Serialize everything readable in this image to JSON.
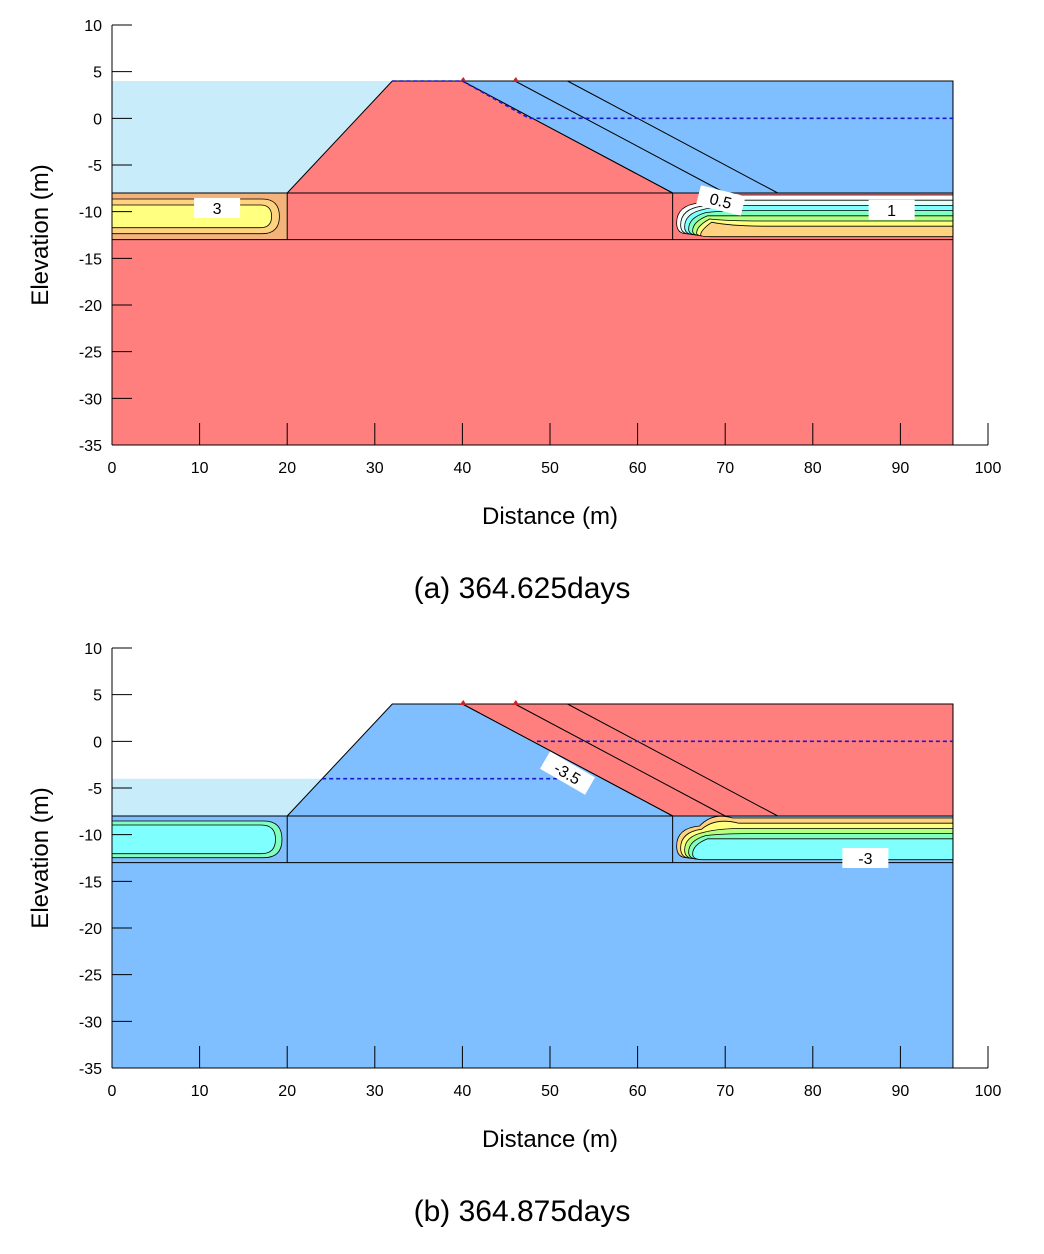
{
  "colors": {
    "warm": "#ff7f7f",
    "cool": "#7fbfff",
    "water": "#c8ecfa",
    "phreatic": "#1a1acc",
    "thaw_ramp_a": [
      "#ffff80",
      "#ffd27f",
      "#f3b37a"
    ],
    "frost_ramp_a": [
      "#ffffff",
      "#e6fff9",
      "#80ffff",
      "#80ffbf",
      "#b5ff80",
      "#ffff80",
      "#ffd27f"
    ],
    "ramp_b_left": [
      "#80ffff",
      "#80ffbf",
      "#b5ff80"
    ],
    "ramp_b_right": [
      "#ffd27f",
      "#ffff80",
      "#b5ff80",
      "#80ffbf",
      "#80ffff"
    ]
  },
  "chart_data": [
    {
      "type": "contour",
      "title": "(a) 364.625days",
      "xlabel": "Distance (m)",
      "ylabel": "Elevation (m)",
      "xlim": [
        0,
        100
      ],
      "ylim": [
        -35,
        10
      ],
      "xticks": [
        "0",
        "10",
        "20",
        "30",
        "40",
        "50",
        "60",
        "70",
        "80",
        "90",
        "100"
      ],
      "yticks": [
        "10",
        "5",
        "0",
        "-5",
        "-10",
        "-15",
        "-20",
        "-25",
        "-30",
        "-35"
      ],
      "domain": {
        "extent_x": [
          0,
          96
        ],
        "foundation": {
          "top": -13,
          "bottom": -35
        },
        "soft_layer": {
          "top": -8,
          "bottom": -13,
          "left_block": [
            0,
            20
          ],
          "middle_block": [
            20,
            64
          ],
          "right_block": [
            64,
            96
          ]
        },
        "embankment": {
          "crest_elevation": 4,
          "base_elevation": -8,
          "upstream_toe": 20,
          "upstream_crest": 32,
          "downstream_crest": 40,
          "downstream_toe": 64
        },
        "downstream_fill": {
          "slope_lines": [
            [
              [
                46,
                4
              ],
              [
                70,
                -8
              ]
            ],
            [
              [
                52,
                4
              ],
              [
                76,
                -8
              ]
            ]
          ],
          "right_edge": 96
        }
      },
      "upstream_water_level": 4,
      "phreatic_lines": [
        [
          [
            32,
            4
          ],
          [
            40,
            4
          ],
          [
            47.6,
            0
          ],
          [
            96,
            0
          ]
        ]
      ],
      "contour_labels": [
        {
          "text": "3",
          "x": 12,
          "y": -9.6,
          "angle": 0
        },
        {
          "text": "0.5",
          "x": 69.5,
          "y": -8.8,
          "angle": 14
        },
        {
          "text": "1",
          "x": 89,
          "y": -9.8,
          "angle": 0
        }
      ]
    },
    {
      "type": "contour",
      "title": "(b) 364.875days",
      "xlabel": "Distance (m)",
      "ylabel": "Elevation (m)",
      "xlim": [
        0,
        100
      ],
      "ylim": [
        -35,
        10
      ],
      "xticks": [
        "0",
        "10",
        "20",
        "30",
        "40",
        "50",
        "60",
        "70",
        "80",
        "90",
        "100"
      ],
      "yticks": [
        "10",
        "5",
        "0",
        "-5",
        "-10",
        "-15",
        "-20",
        "-25",
        "-30",
        "-35"
      ],
      "domain": {
        "extent_x": [
          0,
          96
        ],
        "foundation": {
          "top": -13,
          "bottom": -35
        },
        "soft_layer": {
          "top": -8,
          "bottom": -13,
          "left_block": [
            0,
            20
          ],
          "middle_block": [
            20,
            64
          ],
          "right_block": [
            64,
            96
          ]
        },
        "embankment": {
          "crest_elevation": 4,
          "base_elevation": -8,
          "upstream_toe": 20,
          "upstream_crest": 32,
          "downstream_crest": 40,
          "downstream_toe": 64
        },
        "downstream_fill": {
          "slope_lines": [
            [
              [
                46,
                4
              ],
              [
                70,
                -8
              ]
            ],
            [
              [
                52,
                4
              ],
              [
                76,
                -8
              ]
            ]
          ],
          "right_edge": 96
        }
      },
      "upstream_water_level": -4,
      "phreatic_lines": [
        [
          [
            24,
            -4
          ],
          [
            55,
            -4
          ]
        ],
        [
          [
            48.5,
            0
          ],
          [
            96,
            0
          ]
        ]
      ],
      "contour_labels": [
        {
          "text": "-3.5",
          "x": 52,
          "y": -3.4,
          "angle": 30
        },
        {
          "text": "-3",
          "x": 86,
          "y": -12.5,
          "angle": 0
        }
      ]
    }
  ]
}
